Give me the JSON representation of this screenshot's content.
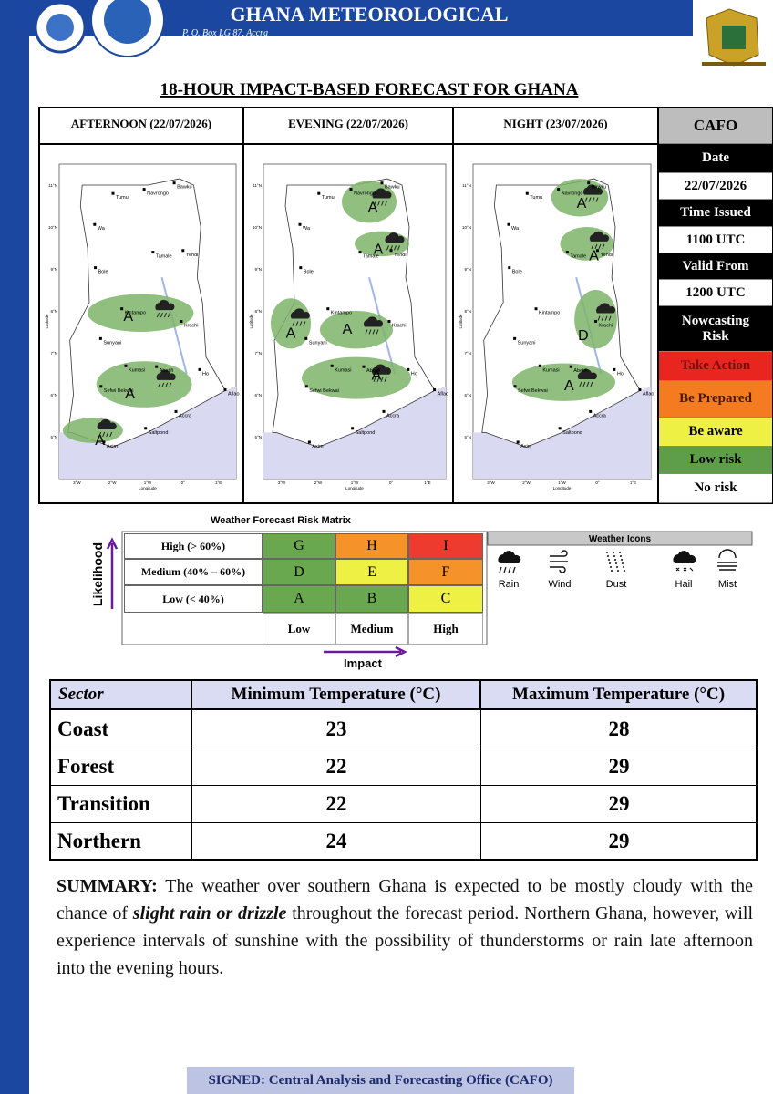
{
  "header": {
    "organization": "GHANA METEOROLOGICAL",
    "address": "P. O. Box LG 87, Accra"
  },
  "title": "18-HOUR IMPACT-BASED FORECAST FOR GHANA",
  "panels": [
    {
      "heading": "AFTERNOON (22/07/2026)",
      "risks": [
        "A",
        "A",
        "A"
      ]
    },
    {
      "heading": "EVENING (22/07/2026)",
      "risks": [
        "A",
        "A",
        "A",
        "A",
        "A"
      ]
    },
    {
      "heading": "NIGHT (23/07/2026)",
      "risks": [
        "A",
        "A",
        "D",
        "A"
      ]
    }
  ],
  "map": {
    "towns": [
      "Navrongo",
      "Bawku",
      "Tumu",
      "Wa",
      "Tamale",
      "Yendi",
      "Bole",
      "Kintampo",
      "Krachi",
      "Sunyani",
      "Kumasi",
      "Abetifi",
      "Sefwi Bekwai",
      "Ho",
      "Accra",
      "Saltpond",
      "Axim",
      "Aflao"
    ],
    "xticks": [
      "3°W",
      "2°W",
      "1°W",
      "0°",
      "1°E"
    ],
    "yticks": [
      "5°N",
      "6°N",
      "7°N",
      "8°N",
      "9°N",
      "10°N",
      "11°N"
    ],
    "xlabel": "Longitude",
    "ylabel": "Latitude"
  },
  "sidebar": [
    {
      "text": "CAFO",
      "style": "head"
    },
    {
      "text": "Date",
      "style": "dark"
    },
    {
      "text": "22/07/2026",
      "style": "light"
    },
    {
      "text": "Time Issued",
      "style": "dark"
    },
    {
      "text": "1100 UTC",
      "style": "light"
    },
    {
      "text": "Valid From",
      "style": "dark"
    },
    {
      "text": "1200 UTC",
      "style": "light"
    },
    {
      "text": "Nowcasting Risk",
      "style": "dark"
    },
    {
      "text": "Take  Action",
      "style": "red"
    },
    {
      "text": "Be Prepared",
      "style": "orange"
    },
    {
      "text": "Be aware",
      "style": "yellow"
    },
    {
      "text": "Low risk",
      "style": "green"
    },
    {
      "text": "No risk",
      "style": "light"
    }
  ],
  "risk_matrix": {
    "title": "Weather Forecast Risk Matrix",
    "y_label": "Likelihood",
    "x_label": "Impact",
    "rows": [
      {
        "label": "High (> 60%)",
        "cells": [
          "G",
          "H",
          "I"
        ],
        "colors": [
          "#6aa84f",
          "#f6922a",
          "#ee3b2f"
        ]
      },
      {
        "label": "Medium (40% – 60%)",
        "cells": [
          "D",
          "E",
          "F"
        ],
        "colors": [
          "#6aa84f",
          "#eef044",
          "#f6922a"
        ]
      },
      {
        "label": "Low (< 40%)",
        "cells": [
          "A",
          "B",
          "C"
        ],
        "colors": [
          "#6aa84f",
          "#6aa84f",
          "#eef044"
        ]
      }
    ],
    "columns": [
      "Low",
      "Medium",
      "High"
    ]
  },
  "icons": {
    "title": "Weather Icons",
    "items": [
      "Rain",
      "Wind",
      "Dust",
      "Hail",
      "Mist"
    ]
  },
  "table": {
    "header": [
      "Sector",
      "Minimum Temperature (°C)",
      "Maximum Temperature (°C)"
    ],
    "rows": [
      [
        "Coast",
        23,
        28
      ],
      [
        "Forest",
        22,
        29
      ],
      [
        "Transition",
        22,
        29
      ],
      [
        "Northern",
        24,
        29
      ]
    ]
  },
  "summary": {
    "label": "SUMMARY:",
    "parts": [
      {
        "text": " The weather over southern Ghana is expected to be mostly cloudy with the chance of ",
        "em": false
      },
      {
        "text": "slight rain or drizzle",
        "em": true
      },
      {
        "text": " throughout the forecast period. Northern Ghana, however, will experience intervals of sunshine with the possibility  of thunderstorms or rain late afternoon into the evening hours.",
        "em": false
      }
    ]
  },
  "footer": "SIGNED: Central Analysis and Forecasting Office (CAFO)"
}
